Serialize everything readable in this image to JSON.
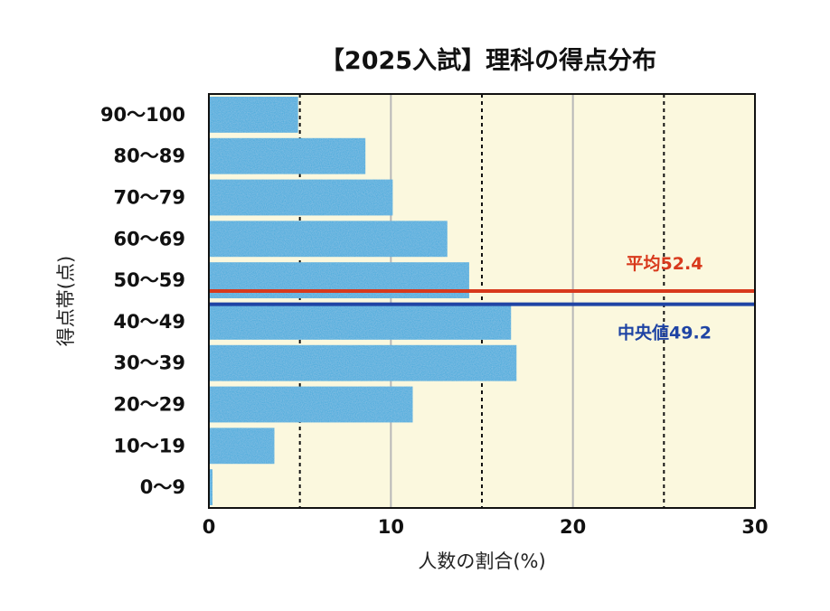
{
  "chart_data": {
    "type": "bar",
    "orientation": "horizontal",
    "title": "【2025入試】理科の得点分布",
    "xlabel": "人数の割合(%)",
    "ylabel": "得点帯(点)",
    "xlim": [
      0,
      30
    ],
    "xticks": [
      0,
      10,
      20,
      30
    ],
    "categories": [
      "90〜100",
      "80〜89",
      "70〜79",
      "60〜69",
      "50〜59",
      "40〜49",
      "30〜39",
      "20〜29",
      "10〜19",
      "0〜9"
    ],
    "values": [
      4.9,
      8.6,
      10.1,
      13.1,
      14.3,
      16.6,
      16.9,
      11.2,
      3.6,
      0.2
    ],
    "reference_lines": [
      {
        "name": "mean",
        "label": "平均52.4",
        "value": 52.4,
        "color": "#d8391c"
      },
      {
        "name": "median",
        "label": "中央値49.2",
        "value": 49.2,
        "color": "#1f44a4"
      }
    ],
    "colors": {
      "bar": "#39a9dc",
      "plot_bg": "#fbf8de",
      "grid_solid": "#b8b8b8",
      "grid_dotted": "#111111"
    }
  }
}
